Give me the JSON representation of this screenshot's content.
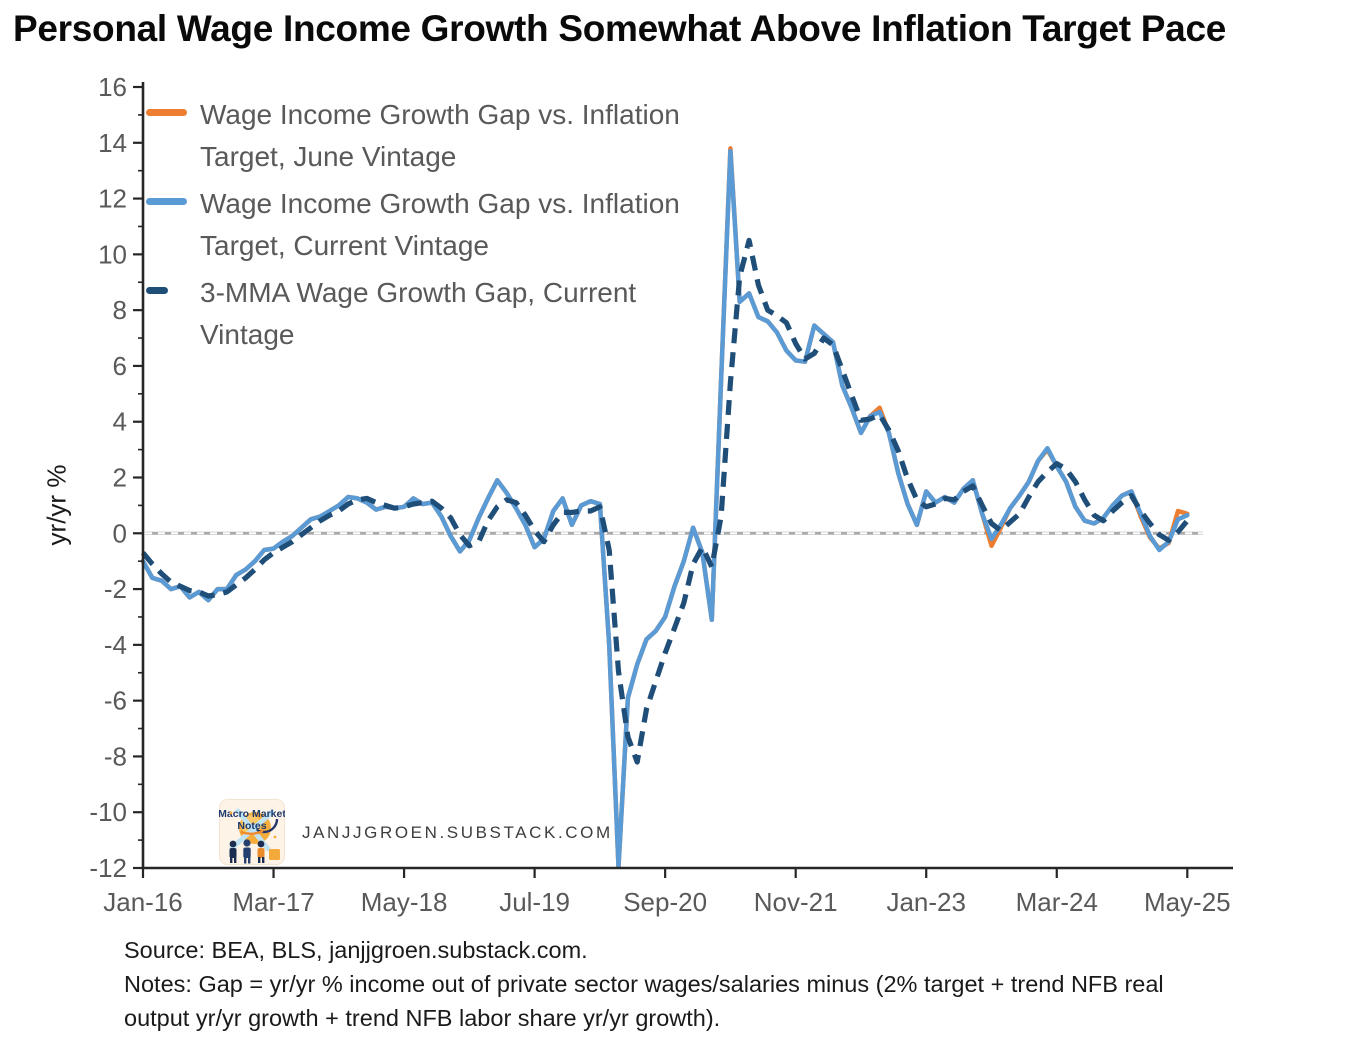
{
  "header": {
    "title": "Personal Wage Income Growth Somewhat Above Inflation Target Pace"
  },
  "legend": {
    "items": [
      {
        "line1": "Wage Income Growth Gap vs. Inflation",
        "line2": "Target, June Vintage",
        "color": "#ED7D31",
        "dash": false
      },
      {
        "line1": "Wage Income Growth Gap vs. Inflation",
        "line2": "Target, Current Vintage",
        "color": "#5B9BD5",
        "dash": false
      },
      {
        "line1": "3-MMA Wage Growth Gap, Current",
        "line2": "Vintage",
        "color": "#1F4E79",
        "dash": true
      }
    ]
  },
  "watermark": {
    "logo_line1": "Macro Market",
    "logo_line2": "Notes",
    "site": "JANJJGROEN.SUBSTACK.COM"
  },
  "footer": {
    "source": "Source: BEA, BLS, janjjgroen.substack.com.",
    "notes": "Notes: Gap = yr/yr % income out of private sector wages/salaries minus (2% target + trend NFB real output yr/yr growth + trend NFB labor share yr/yr growth)."
  },
  "colors": {
    "axis": "#262626",
    "tick_label": "#595959",
    "zero_line": "#ABABAB",
    "title": "#0a0a0a"
  },
  "chart_data": {
    "type": "line",
    "title": "Personal Wage Income Growth Somewhat Above Inflation Target Pace",
    "xlabel": "",
    "ylabel": "yr/yr %",
    "ylim": [
      -12,
      16
    ],
    "ytick_step": 2,
    "grid": "zero-line-only",
    "zero_line": true,
    "legend_position": "top-left",
    "x_unit": "month",
    "x_start": "Jan-2016",
    "x_end": "May-2025",
    "x_ticks": [
      {
        "label": "Jan-16",
        "index": 0
      },
      {
        "label": "Mar-17",
        "index": 14
      },
      {
        "label": "May-18",
        "index": 28
      },
      {
        "label": "Jul-19",
        "index": 42
      },
      {
        "label": "Sep-20",
        "index": 56
      },
      {
        "label": "Nov-21",
        "index": 70
      },
      {
        "label": "Jan-23",
        "index": 84
      },
      {
        "label": "Mar-24",
        "index": 98
      },
      {
        "label": "May-25",
        "index": 112
      }
    ],
    "series": [
      {
        "name": "Wage Income Growth Gap vs. Inflation Target, June Vintage",
        "slug": "june-vintage",
        "color": "#ED7D31",
        "line_style": "solid",
        "width": 4.5,
        "values": [
          -1.0,
          -1.6,
          -1.7,
          -2.0,
          -1.9,
          -2.3,
          -2.1,
          -2.4,
          -2.0,
          -2.0,
          -1.5,
          -1.3,
          -1.0,
          -0.6,
          -0.55,
          -0.3,
          -0.1,
          0.2,
          0.5,
          0.6,
          0.8,
          1.0,
          1.3,
          1.25,
          1.1,
          0.85,
          0.95,
          0.9,
          0.95,
          1.25,
          1.05,
          1.1,
          0.6,
          -0.1,
          -0.65,
          -0.25,
          0.55,
          1.25,
          1.9,
          1.45,
          0.9,
          0.3,
          -0.5,
          -0.2,
          0.8,
          1.25,
          0.3,
          1.0,
          1.15,
          1.05,
          -4.0,
          -11.95,
          -5.9,
          -4.7,
          -3.8,
          -3.5,
          -3.0,
          -1.9,
          -1.0,
          0.2,
          -0.7,
          -3.1,
          5.5,
          13.8,
          8.3,
          8.6,
          7.75,
          7.6,
          7.2,
          6.55,
          6.2,
          6.15,
          7.45,
          7.15,
          6.85,
          5.3,
          4.5,
          3.6,
          4.2,
          4.5,
          3.6,
          2.15,
          1.05,
          0.3,
          1.5,
          1.1,
          1.3,
          1.1,
          1.6,
          1.9,
          0.7,
          -0.45,
          0.2,
          0.9,
          1.35,
          1.85,
          2.6,
          3.0,
          2.4,
          1.85,
          0.95,
          0.45,
          0.35,
          0.55,
          1.0,
          1.35,
          1.5,
          0.6,
          -0.15,
          -0.55,
          -0.35,
          0.8,
          0.7
        ]
      },
      {
        "name": "Wage Income Growth Gap vs. Inflation Target, Current Vintage",
        "slug": "current-vintage",
        "color": "#5B9BD5",
        "line_style": "solid",
        "width": 4.5,
        "values": [
          -1.0,
          -1.6,
          -1.7,
          -2.0,
          -1.9,
          -2.3,
          -2.1,
          -2.4,
          -2.0,
          -2.0,
          -1.5,
          -1.3,
          -1.0,
          -0.6,
          -0.55,
          -0.3,
          -0.1,
          0.2,
          0.5,
          0.6,
          0.8,
          1.0,
          1.3,
          1.25,
          1.1,
          0.85,
          0.95,
          0.9,
          0.95,
          1.25,
          1.05,
          1.1,
          0.6,
          -0.1,
          -0.65,
          -0.25,
          0.55,
          1.25,
          1.9,
          1.45,
          0.9,
          0.3,
          -0.5,
          -0.2,
          0.8,
          1.25,
          0.3,
          1.0,
          1.15,
          1.05,
          -4.0,
          -11.95,
          -5.9,
          -4.7,
          -3.8,
          -3.5,
          -3.0,
          -1.9,
          -1.0,
          0.2,
          -0.7,
          -3.1,
          5.5,
          13.7,
          8.3,
          8.6,
          7.75,
          7.6,
          7.2,
          6.55,
          6.2,
          6.15,
          7.45,
          7.15,
          6.85,
          5.3,
          4.5,
          3.6,
          4.2,
          4.35,
          3.6,
          2.15,
          1.05,
          0.3,
          1.5,
          1.1,
          1.3,
          1.1,
          1.6,
          1.9,
          0.7,
          -0.2,
          0.3,
          0.9,
          1.35,
          1.85,
          2.6,
          3.05,
          2.4,
          1.85,
          0.95,
          0.45,
          0.35,
          0.55,
          1.0,
          1.35,
          1.5,
          0.7,
          -0.1,
          -0.6,
          -0.3,
          0.5,
          0.65
        ]
      },
      {
        "name": "3-MMA Wage Growth Gap, Current Vintage",
        "slug": "3mma-current-vintage",
        "color": "#1F4E79",
        "line_style": "dashed",
        "width": 5.2,
        "values": [
          -0.7,
          -1.1,
          -1.45,
          -1.75,
          -1.9,
          -2.05,
          -2.1,
          -2.25,
          -2.2,
          -2.1,
          -1.85,
          -1.6,
          -1.3,
          -0.95,
          -0.7,
          -0.5,
          -0.3,
          -0.05,
          0.2,
          0.45,
          0.65,
          0.8,
          1.05,
          1.2,
          1.25,
          1.1,
          1.0,
          0.9,
          0.95,
          1.05,
          1.1,
          1.15,
          0.9,
          0.55,
          -0.05,
          -0.45,
          -0.3,
          0.45,
          0.95,
          1.2,
          1.1,
          0.65,
          0.1,
          -0.3,
          0.3,
          0.75,
          0.75,
          0.8,
          0.8,
          0.95,
          -0.6,
          -4.95,
          -7.3,
          -8.2,
          -6.3,
          -5.3,
          -4.3,
          -3.4,
          -2.5,
          -1.1,
          -0.5,
          -1.2,
          0.6,
          5.4,
          9.2,
          10.5,
          8.9,
          8.0,
          7.8,
          7.55,
          6.8,
          6.25,
          6.45,
          7.0,
          6.75,
          5.85,
          4.95,
          4.05,
          4.1,
          4.25,
          3.7,
          2.95,
          1.95,
          1.2,
          0.95,
          1.05,
          1.25,
          1.2,
          1.5,
          1.7,
          1.0,
          0.35,
          0.1,
          0.4,
          0.7,
          1.3,
          1.85,
          2.2,
          2.5,
          2.3,
          1.85,
          1.2,
          0.65,
          0.45,
          0.8,
          1.1,
          1.35,
          0.8,
          0.35,
          -0.05,
          -0.25,
          0.05,
          0.45
        ]
      }
    ]
  }
}
